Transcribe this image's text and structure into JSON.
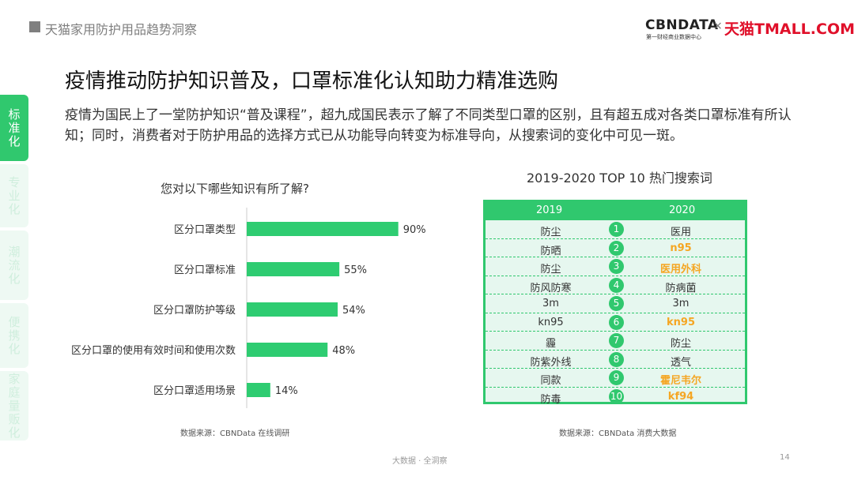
{
  "header": {
    "section_title": "天猫家用防护用品趋势洞察",
    "logo_cbn": "CBNDATA",
    "logo_cbn_sub": "第一财经商业数据中心",
    "logo_x": "×",
    "logo_tmall": "天猫TMALL.COM"
  },
  "headline": "疫情推动防护知识普及，口罩标准化认知助力精准选购",
  "description": "疫情为国民上了一堂防护知识“普及课程”，超九成国民表示了解了不同类型口罩的区别，且有超五成对各类口罩标准有所认知；同时，消费者对于防护用品的选择方式已从功能导向转变为标准导向，从搜索词的变化中可见一斑。",
  "side_tabs": [
    "标准化",
    "专业化",
    "潮流化",
    "便携化",
    "家庭量贩化"
  ],
  "chart_data": [
    {
      "type": "bar",
      "orientation": "horizontal",
      "title": "您对以下哪些知识有所了解?",
      "categories": [
        "区分口罩类型",
        "区分口罩标准",
        "区分口罩防护等级",
        "区分口罩的使用有效时间和使用次数",
        "区分口罩适用场景"
      ],
      "values": [
        90,
        55,
        54,
        48,
        14
      ],
      "value_labels": [
        "90%",
        "55%",
        "54%",
        "48%",
        "14%"
      ],
      "unit": "%",
      "xlim": [
        0,
        100
      ],
      "color": "#2ecc71",
      "source": "数据来源：CBNData 在线调研"
    },
    {
      "type": "table",
      "title": "2019-2020 TOP 10 热门搜索词",
      "columns": [
        "2019",
        "2020"
      ],
      "ranks": [
        "1",
        "2",
        "3",
        "4",
        "5",
        "6",
        "7",
        "8",
        "9",
        "10"
      ],
      "col_2019": [
        "防尘",
        "防晒",
        "防尘",
        "防风防寒",
        "3m",
        "kn95",
        "霾",
        "防紫外线",
        "同款",
        "防毒"
      ],
      "col_2020": [
        "医用",
        "n95",
        "医用外科",
        "防病菌",
        "3m",
        "kn95",
        "防尘",
        "透气",
        "霍尼韦尔",
        "kf94"
      ],
      "highlight_2020": [
        false,
        true,
        true,
        false,
        false,
        true,
        false,
        false,
        true,
        true
      ],
      "source": "数据来源：CBNData 消费大数据"
    }
  ],
  "footer": {
    "text": "大数据 · 全洞察",
    "page": "14"
  },
  "colors": {
    "accent": "#30c86e",
    "highlight": "#f5a623",
    "tab_inactive": "#eef9f3"
  }
}
